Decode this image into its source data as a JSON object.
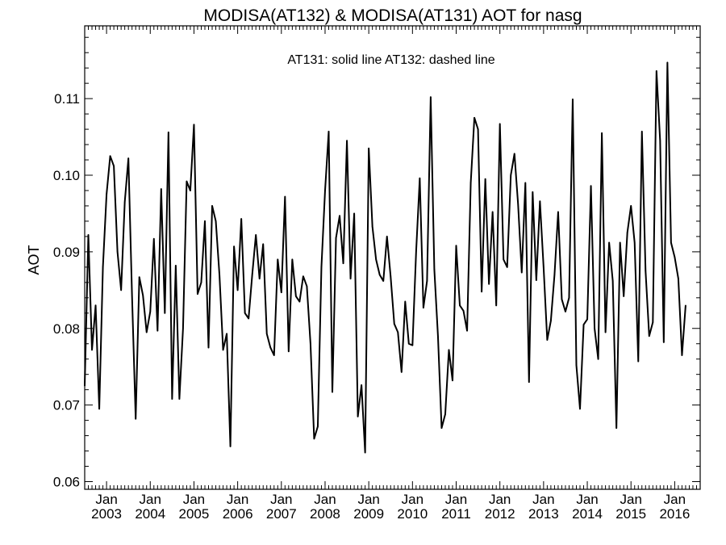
{
  "chart_data": {
    "type": "line",
    "title": "MODISA(AT132) & MODISA(AT131)  AOT for nasg",
    "annotation": "AT131: solid line   AT132: dashed line",
    "xlabel": "",
    "ylabel": "AOT",
    "ylim": [
      0.059,
      0.1195
    ],
    "xlim": [
      "2002-07",
      "2016-08"
    ],
    "y_ticks": [
      "0.06",
      "0.07",
      "0.08",
      "0.09",
      "0.10",
      "0.11"
    ],
    "x_ticks": [
      {
        "month": "Jan",
        "year": "2003"
      },
      {
        "month": "Jan",
        "year": "2004"
      },
      {
        "month": "Jan",
        "year": "2005"
      },
      {
        "month": "Jan",
        "year": "2006"
      },
      {
        "month": "Jan",
        "year": "2007"
      },
      {
        "month": "Jan",
        "year": "2008"
      },
      {
        "month": "Jan",
        "year": "2009"
      },
      {
        "month": "Jan",
        "year": "2010"
      },
      {
        "month": "Jan",
        "year": "2011"
      },
      {
        "month": "Jan",
        "year": "2012"
      },
      {
        "month": "Jan",
        "year": "2013"
      },
      {
        "month": "Jan",
        "year": "2014"
      },
      {
        "month": "Jan",
        "year": "2015"
      },
      {
        "month": "Jan",
        "year": "2016"
      }
    ],
    "grid": false,
    "series": [
      {
        "name": "AT131",
        "style": "solid",
        "color": "#000000",
        "points": [
          [
            "2002-07",
            0.0725
          ],
          [
            "2002-08",
            0.0922
          ],
          [
            "2002-09",
            0.0772
          ],
          [
            "2002-10",
            0.083
          ],
          [
            "2002-11",
            0.0695
          ],
          [
            "2002-12",
            0.088
          ],
          [
            "2003-01",
            0.0975
          ],
          [
            "2003-02",
            0.1025
          ],
          [
            "2003-03",
            0.1012
          ],
          [
            "2003-04",
            0.09
          ],
          [
            "2003-05",
            0.085
          ],
          [
            "2003-06",
            0.0965
          ],
          [
            "2003-07",
            0.1022
          ],
          [
            "2003-08",
            0.0842
          ],
          [
            "2003-09",
            0.0682
          ],
          [
            "2003-10",
            0.0867
          ],
          [
            "2003-11",
            0.0843
          ],
          [
            "2003-12",
            0.0795
          ],
          [
            "2004-01",
            0.0822
          ],
          [
            "2004-02",
            0.0917
          ],
          [
            "2004-03",
            0.0797
          ],
          [
            "2004-04",
            0.0982
          ],
          [
            "2004-05",
            0.082
          ],
          [
            "2004-06",
            0.1056
          ],
          [
            "2004-07",
            0.0708
          ],
          [
            "2004-08",
            0.0882
          ],
          [
            "2004-09",
            0.0708
          ],
          [
            "2004-10",
            0.08
          ],
          [
            "2004-11",
            0.0992
          ],
          [
            "2004-12",
            0.098
          ],
          [
            "2005-01",
            0.1066
          ],
          [
            "2005-02",
            0.0845
          ],
          [
            "2005-03",
            0.086
          ],
          [
            "2005-04",
            0.094
          ],
          [
            "2005-05",
            0.0775
          ],
          [
            "2005-06",
            0.096
          ],
          [
            "2005-07",
            0.094
          ],
          [
            "2005-08",
            0.087
          ],
          [
            "2005-09",
            0.0772
          ],
          [
            "2005-10",
            0.0793
          ],
          [
            "2005-11",
            0.0646
          ],
          [
            "2005-12",
            0.0907
          ],
          [
            "2006-01",
            0.085
          ],
          [
            "2006-02",
            0.0943
          ],
          [
            "2006-03",
            0.082
          ],
          [
            "2006-04",
            0.0813
          ],
          [
            "2006-05",
            0.087
          ],
          [
            "2006-06",
            0.0922
          ],
          [
            "2006-07",
            0.0865
          ],
          [
            "2006-08",
            0.091
          ],
          [
            "2006-09",
            0.0793
          ],
          [
            "2006-10",
            0.0775
          ],
          [
            "2006-11",
            0.0765
          ],
          [
            "2006-12",
            0.089
          ],
          [
            "2007-01",
            0.0847
          ],
          [
            "2007-02",
            0.0972
          ],
          [
            "2007-03",
            0.077
          ],
          [
            "2007-04",
            0.089
          ],
          [
            "2007-05",
            0.0842
          ],
          [
            "2007-06",
            0.0835
          ],
          [
            "2007-07",
            0.0868
          ],
          [
            "2007-08",
            0.0855
          ],
          [
            "2007-09",
            0.078
          ],
          [
            "2007-10",
            0.0656
          ],
          [
            "2007-11",
            0.0672
          ],
          [
            "2007-12",
            0.088
          ],
          [
            "2008-01",
            0.098
          ],
          [
            "2008-02",
            0.1057
          ],
          [
            "2008-03",
            0.0717
          ],
          [
            "2008-04",
            0.0918
          ],
          [
            "2008-05",
            0.0947
          ],
          [
            "2008-06",
            0.0885
          ],
          [
            "2008-07",
            0.1045
          ],
          [
            "2008-08",
            0.0865
          ],
          [
            "2008-09",
            0.095
          ],
          [
            "2008-10",
            0.0685
          ],
          [
            "2008-11",
            0.0726
          ],
          [
            "2008-12",
            0.0638
          ],
          [
            "2009-01",
            0.1035
          ],
          [
            "2009-02",
            0.0933
          ],
          [
            "2009-03",
            0.089
          ],
          [
            "2009-04",
            0.087
          ],
          [
            "2009-05",
            0.0862
          ],
          [
            "2009-06",
            0.092
          ],
          [
            "2009-07",
            0.0868
          ],
          [
            "2009-08",
            0.0806
          ],
          [
            "2009-09",
            0.0795
          ],
          [
            "2009-10",
            0.0743
          ],
          [
            "2009-11",
            0.0835
          ],
          [
            "2009-12",
            0.078
          ],
          [
            "2010-01",
            0.0778
          ],
          [
            "2010-02",
            0.09
          ],
          [
            "2010-03",
            0.0996
          ],
          [
            "2010-04",
            0.0827
          ],
          [
            "2010-05",
            0.0862
          ],
          [
            "2010-06",
            0.1102
          ],
          [
            "2010-07",
            0.0877
          ],
          [
            "2010-08",
            0.079
          ],
          [
            "2010-09",
            0.067
          ],
          [
            "2010-10",
            0.0688
          ],
          [
            "2010-11",
            0.0772
          ],
          [
            "2010-12",
            0.0732
          ],
          [
            "2011-01",
            0.0908
          ],
          [
            "2011-02",
            0.083
          ],
          [
            "2011-03",
            0.0823
          ],
          [
            "2011-04",
            0.0797
          ],
          [
            "2011-05",
            0.099
          ],
          [
            "2011-06",
            0.1075
          ],
          [
            "2011-07",
            0.106
          ],
          [
            "2011-08",
            0.0848
          ],
          [
            "2011-09",
            0.0995
          ],
          [
            "2011-10",
            0.0858
          ],
          [
            "2011-11",
            0.0952
          ],
          [
            "2011-12",
            0.083
          ],
          [
            "2012-01",
            0.1067
          ],
          [
            "2012-02",
            0.089
          ],
          [
            "2012-03",
            0.088
          ],
          [
            "2012-04",
            0.1
          ],
          [
            "2012-05",
            0.1028
          ],
          [
            "2012-06",
            0.0962
          ],
          [
            "2012-07",
            0.0873
          ],
          [
            "2012-08",
            0.099
          ],
          [
            "2012-09",
            0.073
          ],
          [
            "2012-10",
            0.0978
          ],
          [
            "2012-11",
            0.0863
          ],
          [
            "2012-12",
            0.0966
          ],
          [
            "2013-01",
            0.088
          ],
          [
            "2013-02",
            0.0785
          ],
          [
            "2013-03",
            0.081
          ],
          [
            "2013-04",
            0.087
          ],
          [
            "2013-05",
            0.0952
          ],
          [
            "2013-06",
            0.0838
          ],
          [
            "2013-07",
            0.0822
          ],
          [
            "2013-08",
            0.084
          ],
          [
            "2013-09",
            0.1099
          ],
          [
            "2013-10",
            0.0752
          ],
          [
            "2013-11",
            0.0695
          ],
          [
            "2013-12",
            0.0805
          ],
          [
            "2014-01",
            0.0812
          ],
          [
            "2014-02",
            0.0986
          ],
          [
            "2014-03",
            0.08
          ],
          [
            "2014-04",
            0.076
          ],
          [
            "2014-05",
            0.1055
          ],
          [
            "2014-06",
            0.0795
          ],
          [
            "2014-07",
            0.0912
          ],
          [
            "2014-08",
            0.0862
          ],
          [
            "2014-09",
            0.067
          ],
          [
            "2014-10",
            0.0912
          ],
          [
            "2014-11",
            0.0842
          ],
          [
            "2014-12",
            0.0925
          ],
          [
            "2015-01",
            0.096
          ],
          [
            "2015-02",
            0.0912
          ],
          [
            "2015-03",
            0.0757
          ],
          [
            "2015-04",
            0.1057
          ],
          [
            "2015-05",
            0.0875
          ],
          [
            "2015-06",
            0.079
          ],
          [
            "2015-07",
            0.0808
          ],
          [
            "2015-08",
            0.1136
          ],
          [
            "2015-09",
            0.1045
          ],
          [
            "2015-10",
            0.0782
          ],
          [
            "2015-11",
            0.1147
          ],
          [
            "2015-12",
            0.0912
          ],
          [
            "2016-01",
            0.0893
          ],
          [
            "2016-02",
            0.0865
          ],
          [
            "2016-03",
            0.0765
          ],
          [
            "2016-04",
            0.083
          ]
        ]
      }
    ]
  }
}
